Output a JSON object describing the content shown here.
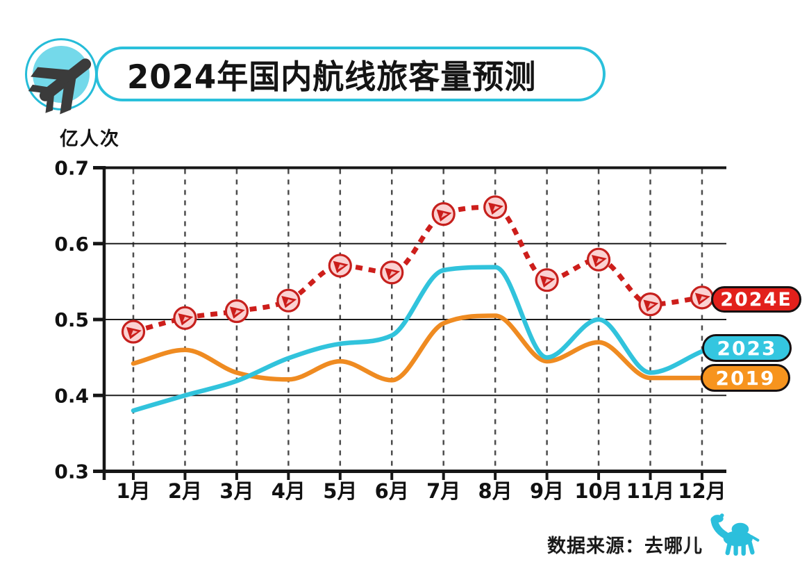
{
  "header": {
    "title": "2024年国内航线旅客量预测",
    "logo": {
      "icon": "airplane-icon",
      "disc_fill": "#74d9ea",
      "ring_border": "#25bcd8",
      "plane_color": "#3b3b3b"
    }
  },
  "chart_data": {
    "type": "line",
    "title": "2024年国内航线旅客量预测",
    "ylabel": "亿人次",
    "xlabel": "",
    "ylim": [
      0.3,
      0.7
    ],
    "yticks": [
      0.7,
      0.6,
      0.5,
      0.4,
      0.3
    ],
    "grid": "horizontal solid lines + vertical dashed month lines",
    "legend_position": "right",
    "categories": [
      "1月",
      "2月",
      "3月",
      "4月",
      "5月",
      "6月",
      "7月",
      "8月",
      "9月",
      "10月",
      "11月",
      "12月"
    ],
    "series": [
      {
        "name": "2024E",
        "line_style": "dashed",
        "color": "#cd1e1b",
        "marker": "plane-circle",
        "marker_fill": "#fbd2d2",
        "marker_border": "#c6201d",
        "values": [
          0.484,
          0.502,
          0.511,
          0.525,
          0.571,
          0.562,
          0.639,
          0.648,
          0.552,
          0.579,
          0.52,
          0.529
        ]
      },
      {
        "name": "2023",
        "line_style": "solid",
        "color": "#31c3dc",
        "marker": "none",
        "values": [
          0.38,
          0.4,
          0.419,
          0.449,
          0.468,
          0.479,
          0.565,
          0.569,
          0.45,
          0.5,
          0.43,
          0.458
        ]
      },
      {
        "name": "2019",
        "line_style": "solid",
        "color": "#ef8b21",
        "marker": "none",
        "values": [
          0.442,
          0.46,
          0.43,
          0.421,
          0.445,
          0.42,
          0.495,
          0.505,
          0.445,
          0.47,
          0.423,
          0.423
        ]
      }
    ],
    "legend": [
      {
        "label": "2024E",
        "color": "#e2201b"
      },
      {
        "label": "2023",
        "color": "#34c6e0"
      },
      {
        "label": "2019",
        "color": "#f7941e"
      }
    ]
  },
  "source": {
    "label": "数据来源：去哪儿",
    "logo": "camel-icon",
    "logo_color": "#2bbfdc"
  }
}
